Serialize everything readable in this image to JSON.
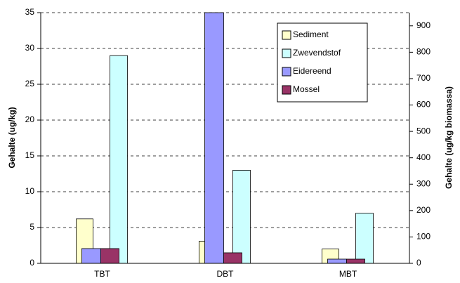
{
  "chart_data": {
    "type": "bar",
    "y_label": "Gehalte (ug/kg)",
    "y2_label": "Gehalte (ug/kg biomassa)",
    "categories": [
      "TBT",
      "DBT",
      "MBT"
    ],
    "series": [
      {
        "name": "Sediment",
        "color": "#ffffcc",
        "values": [
          6.2,
          3.1,
          2.0
        ]
      },
      {
        "name": "Zwevendstof",
        "color": "#ccffff",
        "values": [
          29,
          13,
          7
        ]
      },
      {
        "name": "Eidereend",
        "color": "#9999ff",
        "axis": "y2",
        "values": [
          56,
          950,
          16
        ]
      },
      {
        "name": "Mossel",
        "color": "#993366",
        "axis": "y2",
        "values": [
          56,
          40,
          16
        ]
      }
    ],
    "ylim": [
      0,
      35
    ],
    "yticks": [
      0,
      5,
      10,
      15,
      20,
      25,
      30,
      35
    ],
    "y2lim": [
      0,
      950
    ],
    "y2ticks": [
      0,
      100,
      200,
      300,
      400,
      500,
      600,
      700,
      800,
      900
    ],
    "grid": true,
    "legend": "upper right"
  }
}
